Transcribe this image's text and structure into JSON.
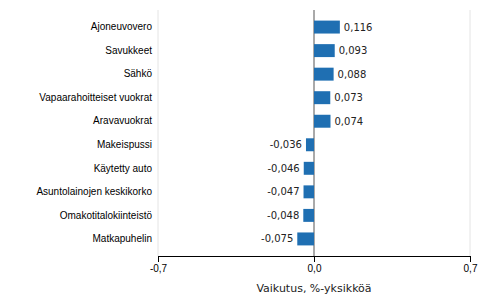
{
  "chart_data": {
    "type": "bar",
    "orientation": "horizontal",
    "categories": [
      "Matkapuhelin",
      "Omakotitalokiinteistö",
      "Asuntolainojen keskikorko",
      "Käytetty auto",
      "Makeispussi",
      "Aravavuokrat",
      "Vapaarahoitteiset vuokrat",
      "Sähkö",
      "Savukkeet",
      "Ajoneuvovero"
    ],
    "values": [
      -0.075,
      -0.048,
      -0.047,
      -0.046,
      -0.036,
      0.074,
      0.073,
      0.088,
      0.093,
      0.116
    ],
    "value_labels": [
      "-0,075",
      "-0,048",
      "-0,047",
      "-0,046",
      "-0,036",
      "0,074",
      "0,073",
      "0,088",
      "0,093",
      "0,116"
    ],
    "data_labels": true,
    "color": "#1f6fb2",
    "xlabel": "Vaikutus, %-yksikköä",
    "xlim": [
      -0.7,
      0.7
    ],
    "xticks": [
      {
        "value": -0.7,
        "label": "-0,7"
      },
      {
        "value": 0.0,
        "label": "0,0"
      },
      {
        "value": 0.7,
        "label": "0,7"
      }
    ],
    "grid": true
  }
}
